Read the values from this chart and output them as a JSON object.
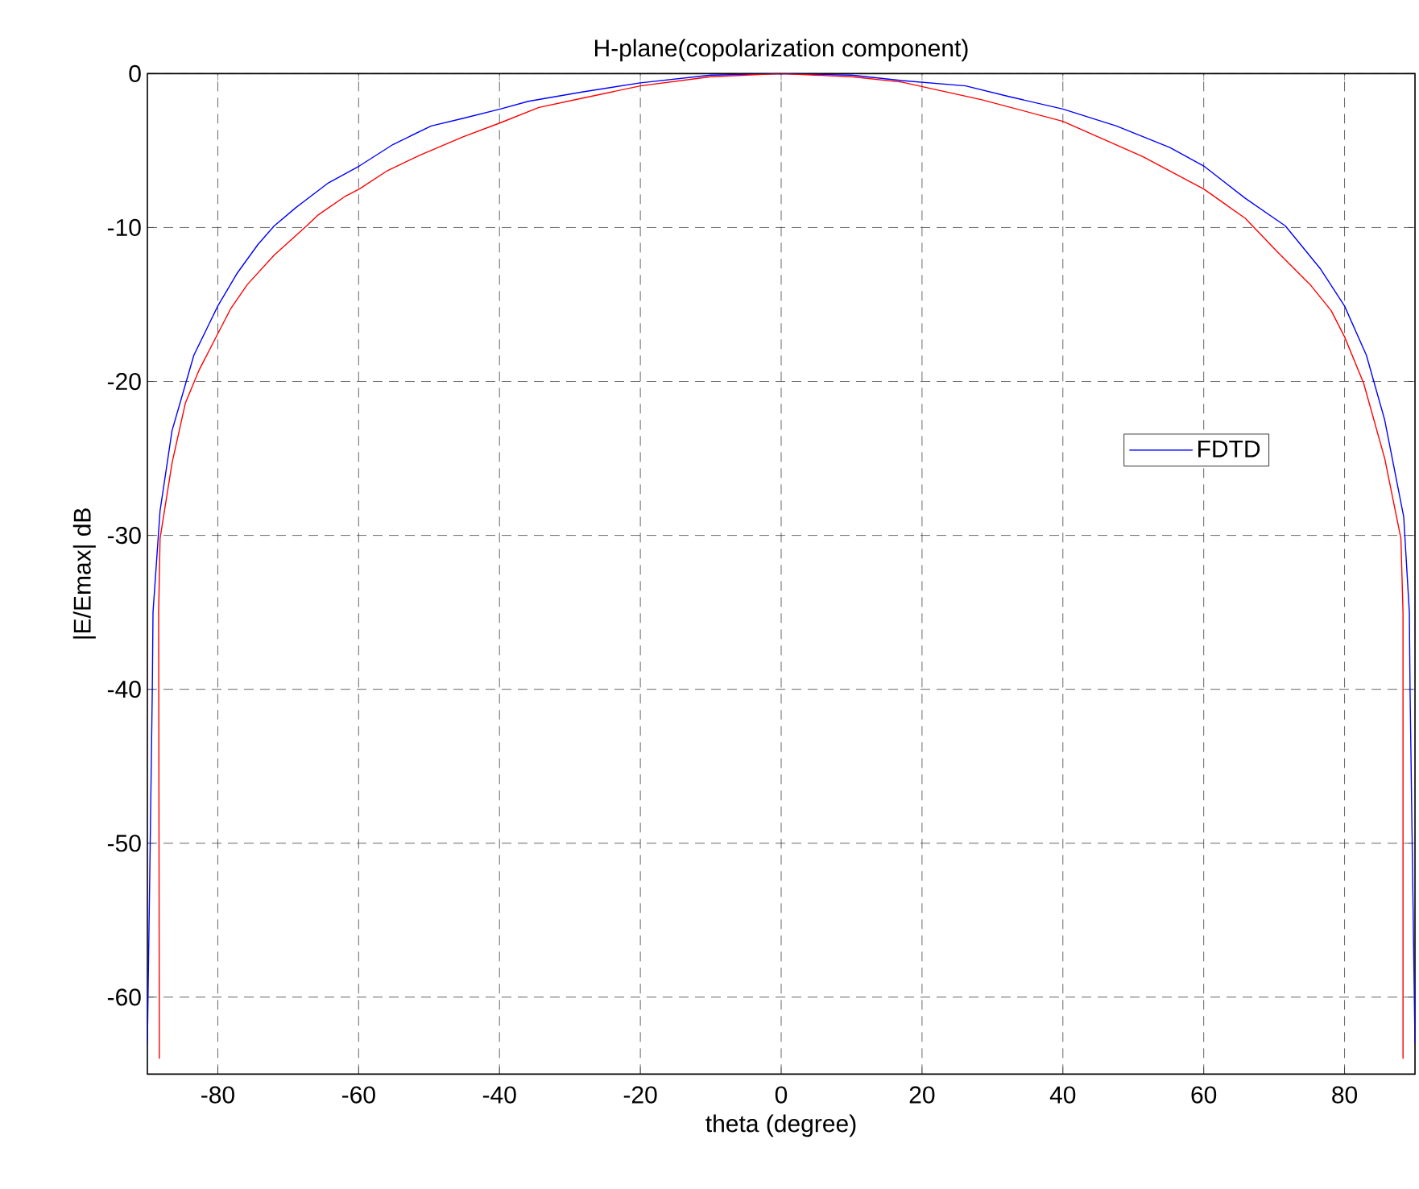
{
  "chart_data": {
    "type": "line",
    "title": "H-plane(copolarization component)",
    "xlabel": "theta (degree)",
    "ylabel": "|E/Emax| dB",
    "xlim": [
      -90,
      90
    ],
    "xticks": [
      -80,
      -60,
      -40,
      -20,
      0,
      20,
      40,
      60,
      80
    ],
    "ylim": [
      -65,
      0
    ],
    "yticks": [
      -60,
      -50,
      -40,
      -30,
      -20,
      -10,
      0
    ],
    "grid": true,
    "legend": "right",
    "line_style": "solid",
    "marker": "none",
    "series": [
      {
        "name": "FDTD",
        "color": "#0000ff",
        "x": [
          -90,
          -89.6,
          -89.3,
          -89.2,
          -88.2,
          -86.5,
          -83.4,
          -80,
          -77.3,
          -74.3,
          -72,
          -68.9,
          -64.3,
          -59.9,
          -55.1,
          -49.7,
          -45.1,
          -39.9,
          -35.9,
          -28.3,
          -20,
          -10,
          0,
          10,
          17.1,
          26.2,
          32.4,
          40,
          47.6,
          55.2,
          60,
          65.9,
          71.6,
          76.6,
          80,
          83.1,
          85.7,
          88.4,
          89.2,
          89.3,
          89.6,
          90
        ],
        "values": [
          -63,
          -50,
          -40,
          -35,
          -28.4,
          -23.2,
          -18.3,
          -15.1,
          -13,
          -11.1,
          -9.9,
          -8.7,
          -7.1,
          -6,
          -4.6,
          -3.4,
          -2.9,
          -2.3,
          -1.8,
          -1.2,
          -0.6,
          -0.1,
          0,
          -0.1,
          -0.45,
          -0.8,
          -1.5,
          -2.3,
          -3.4,
          -4.8,
          -6,
          -8.1,
          -9.9,
          -12.7,
          -15.1,
          -18.3,
          -22.5,
          -28.8,
          -35,
          -40,
          -50,
          -63
        ]
      },
      {
        "color": "#ff0000",
        "x": [
          -88.3,
          -88.4,
          -88.2,
          -86.5,
          -84.6,
          -82.7,
          -80,
          -78.2,
          -75.8,
          -72,
          -67.4,
          -65.8,
          -62,
          -59.9,
          -55.9,
          -51.3,
          -45.1,
          -39.9,
          -34.4,
          -28.3,
          -20,
          -10,
          0,
          10,
          17.1,
          28.5,
          40,
          51.4,
          60,
          65.9,
          70.5,
          75.1,
          78.1,
          80,
          82.7,
          85.7,
          88,
          88.3,
          88.3
        ],
        "values": [
          -64,
          -35,
          -30.2,
          -25.3,
          -21.4,
          -19.3,
          -16.9,
          -15.3,
          -13.7,
          -11.8,
          -9.9,
          -9.2,
          -8,
          -7.5,
          -6.3,
          -5.3,
          -4.1,
          -3.2,
          -2.2,
          -1.6,
          -0.8,
          -0.2,
          0,
          -0.2,
          -0.55,
          -1.7,
          -3.1,
          -5.4,
          -7.5,
          -9.4,
          -11.6,
          -13.7,
          -15.4,
          -17.1,
          -20.1,
          -25,
          -30.2,
          -35,
          -64
        ]
      }
    ]
  }
}
